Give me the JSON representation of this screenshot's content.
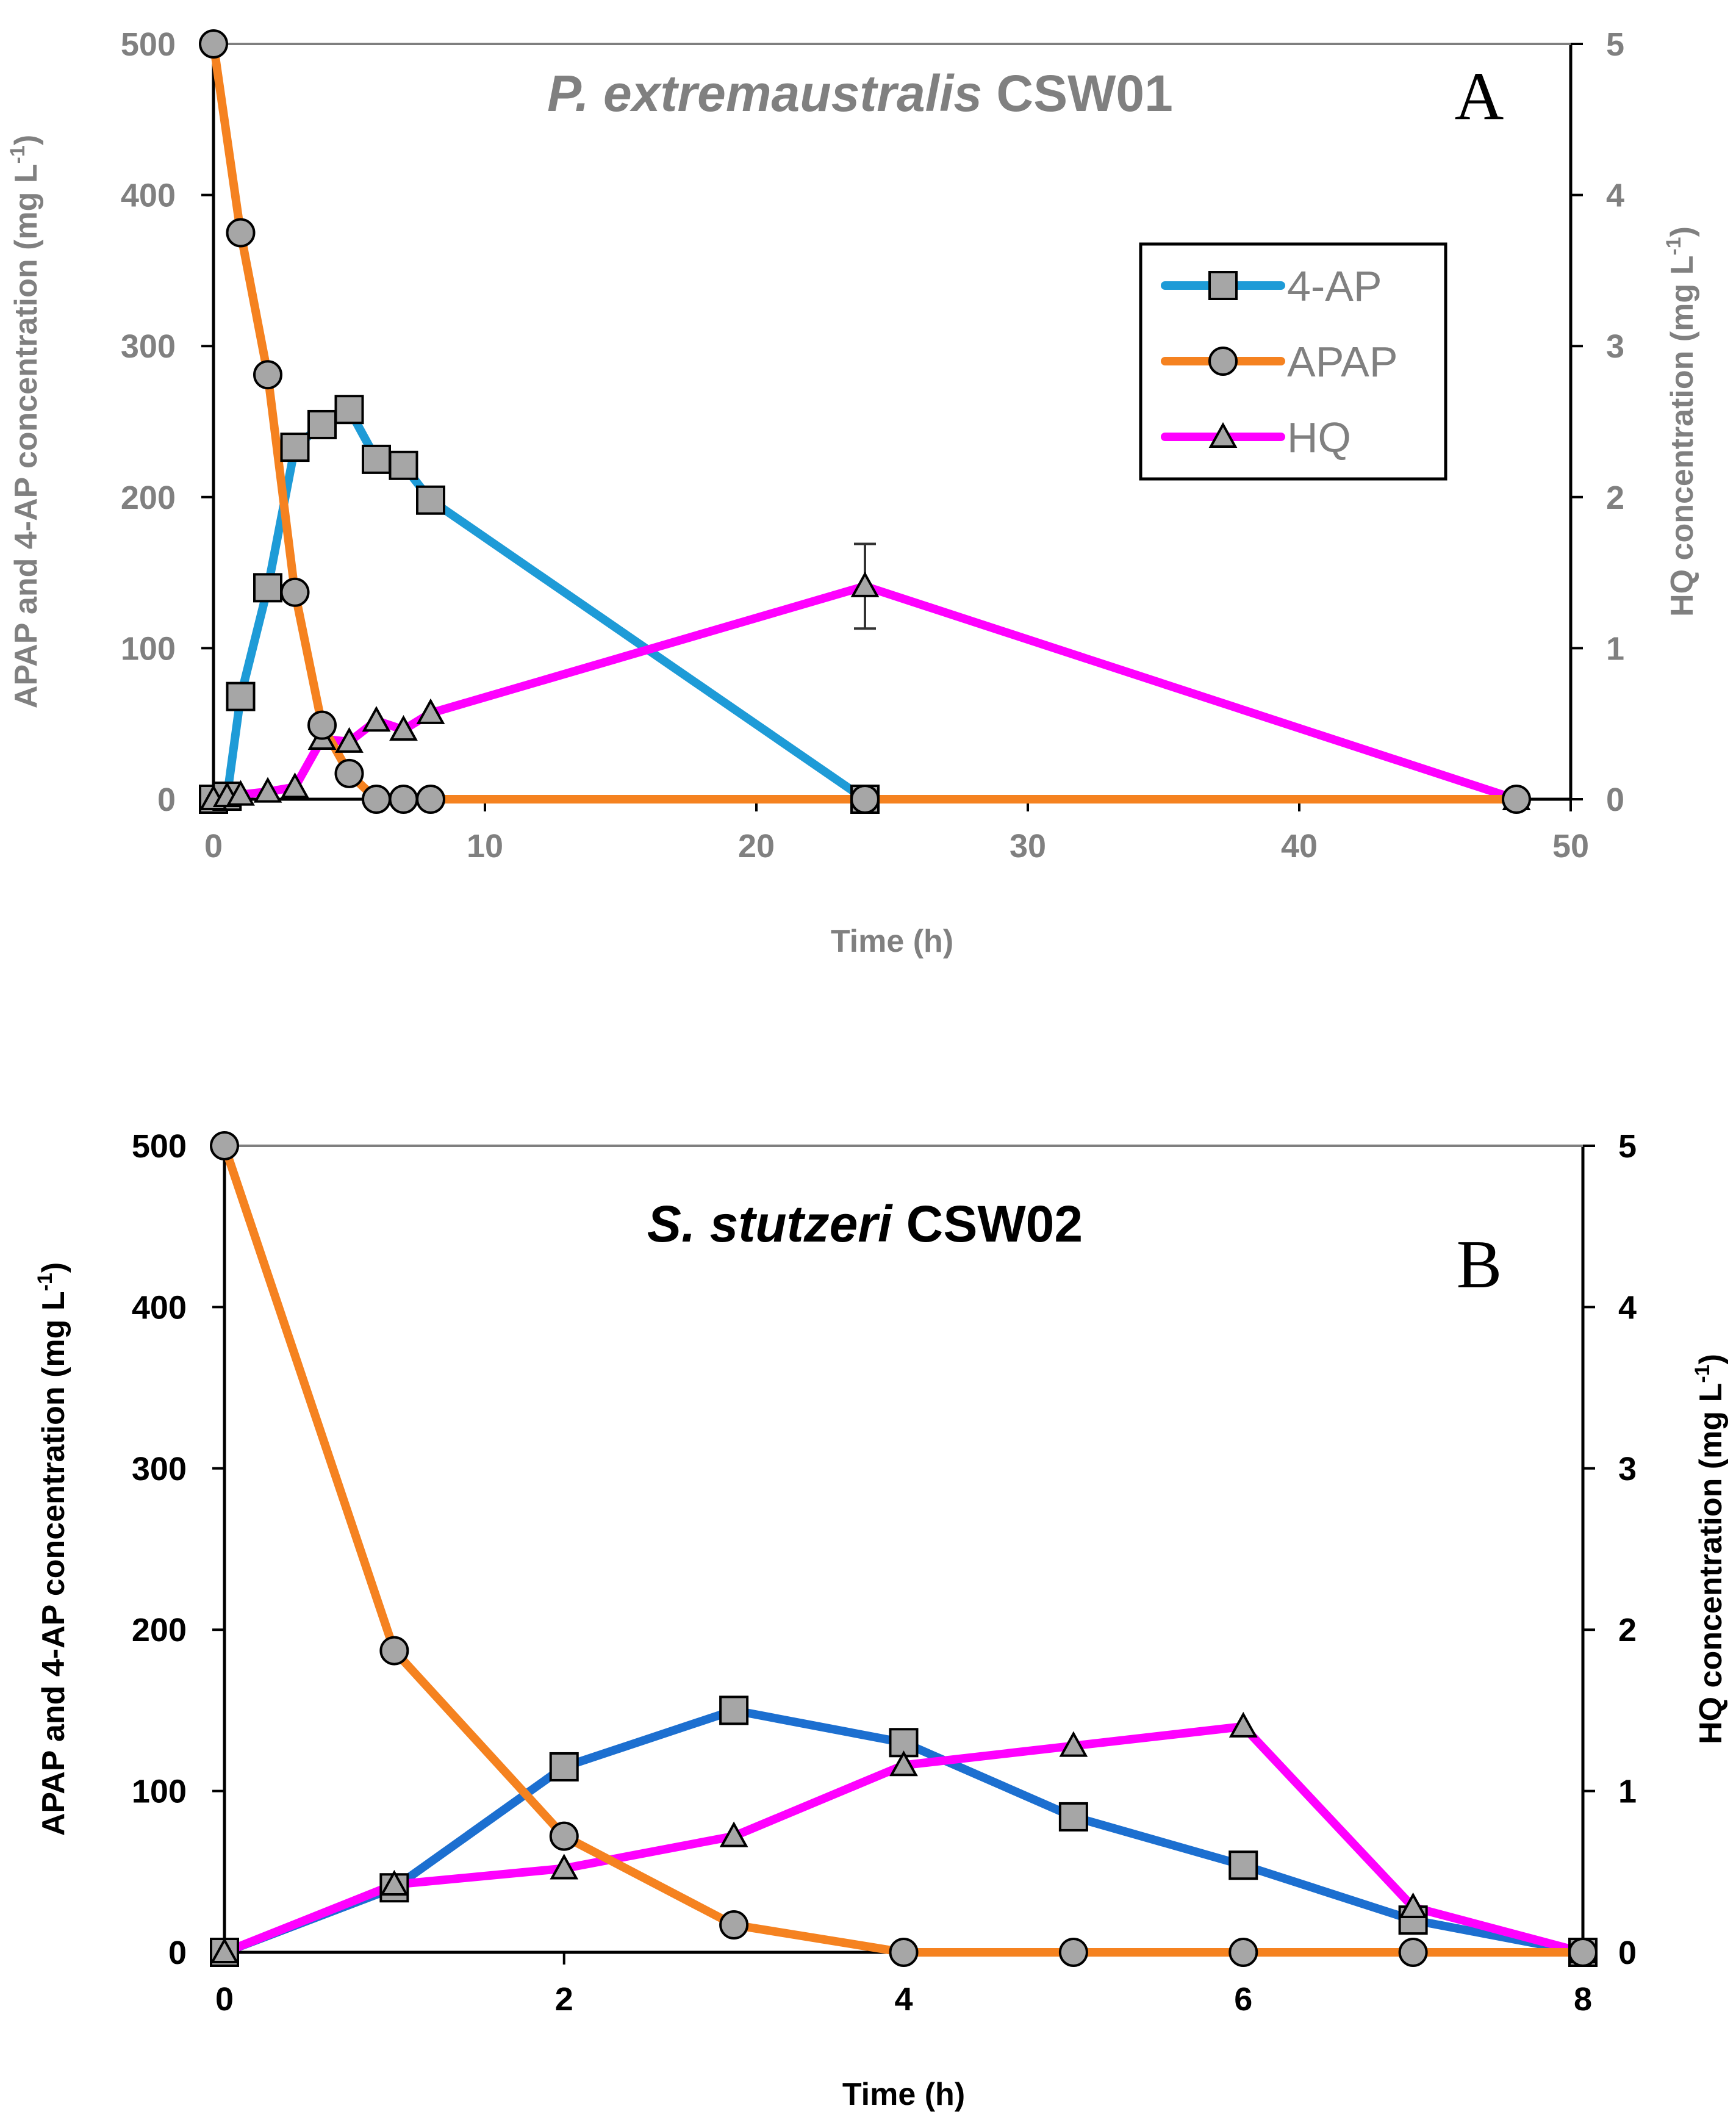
{
  "colors": {
    "ap_a": "#1E9BD7",
    "ap_b": "#1C6FD0",
    "apap": "#F58220",
    "hq": "#FF00FF",
    "marker_fill": "#A6A6A6",
    "axis": "#000000",
    "gray_text": "#808080",
    "black_text": "#000000"
  },
  "chart_data": [
    {
      "type": "line",
      "panel": "A",
      "title_italic": "P. extremaustralis",
      "title_rest": " CSW01",
      "xlabel": "Time (h)",
      "ylabel_prefix": "APAP and 4-AP concentration (mg L",
      "ylabel2_prefix": "HQ concentration (mg L",
      "ylabel_sup": "-1",
      "ylabel_suffix": ")",
      "xlim": [
        0,
        50
      ],
      "ylim": [
        0,
        500
      ],
      "y2lim": [
        0,
        5
      ],
      "xticks": [
        "0",
        "10",
        "20",
        "30",
        "40",
        "50"
      ],
      "yticks": [
        "0",
        "100",
        "200",
        "300",
        "400",
        "500"
      ],
      "y2ticks": [
        "0",
        "1",
        "2",
        "3",
        "4",
        "5"
      ],
      "legend": {
        "position": "upper-right",
        "entries": [
          "4-AP",
          "APAP",
          "HQ"
        ]
      },
      "series": [
        {
          "name": "4-AP",
          "axis": "left",
          "marker": "square",
          "x": [
            0,
            0.5,
            1,
            2,
            3,
            4,
            5,
            6,
            7,
            8,
            24
          ],
          "y": [
            0,
            2,
            68,
            140,
            233,
            248,
            258,
            225,
            221,
            198,
            0
          ]
        },
        {
          "name": "APAP",
          "axis": "left",
          "marker": "circle",
          "x": [
            0,
            1,
            2,
            3,
            4,
            5,
            6,
            7,
            8,
            24,
            48
          ],
          "y": [
            500,
            375,
            281,
            137,
            49,
            17,
            0,
            0,
            0,
            0,
            0
          ]
        },
        {
          "name": "HQ",
          "axis": "right",
          "marker": "triangle",
          "x": [
            0,
            0.5,
            1,
            2,
            3,
            4,
            5,
            6,
            7,
            8,
            24,
            48
          ],
          "y": [
            0,
            0.02,
            0.03,
            0.05,
            0.08,
            0.4,
            0.38,
            0.52,
            0.46,
            0.57,
            1.41,
            0
          ],
          "errorbars": [
            {
              "x": 24,
              "y": 1.41,
              "err": 0.28
            }
          ]
        }
      ]
    },
    {
      "type": "line",
      "panel": "B",
      "title_italic": "S. stutzeri",
      "title_rest": " CSW02",
      "xlabel": "Time (h)",
      "ylabel_prefix": "APAP and 4-AP concentration (mg L",
      "ylabel2_prefix": "HQ concentration (mg L",
      "ylabel_sup": "-1",
      "ylabel_suffix": ")",
      "xlim": [
        0,
        8
      ],
      "ylim": [
        0,
        500
      ],
      "y2lim": [
        0,
        5
      ],
      "xticks": [
        "0",
        "2",
        "4",
        "6",
        "8"
      ],
      "yticks": [
        "0",
        "100",
        "200",
        "300",
        "400",
        "500"
      ],
      "y2ticks": [
        "0",
        "1",
        "2",
        "3",
        "4",
        "5"
      ],
      "series": [
        {
          "name": "4-AP",
          "axis": "left",
          "marker": "square",
          "x": [
            0,
            1,
            2,
            3,
            4,
            5,
            6,
            7,
            8
          ],
          "y": [
            0,
            40,
            115,
            150,
            130,
            84,
            54,
            20,
            0
          ]
        },
        {
          "name": "APAP",
          "axis": "left",
          "marker": "circle",
          "x": [
            0,
            1,
            2,
            3,
            4,
            5,
            6,
            7,
            8
          ],
          "y": [
            500,
            187,
            72,
            17,
            0,
            0,
            0,
            0,
            0
          ]
        },
        {
          "name": "HQ",
          "axis": "right",
          "marker": "triangle",
          "x": [
            0,
            1,
            2,
            3,
            4,
            5,
            6,
            7,
            8
          ],
          "y": [
            0,
            0.42,
            0.52,
            0.72,
            1.16,
            1.28,
            1.4,
            0.28,
            0
          ]
        }
      ]
    }
  ]
}
